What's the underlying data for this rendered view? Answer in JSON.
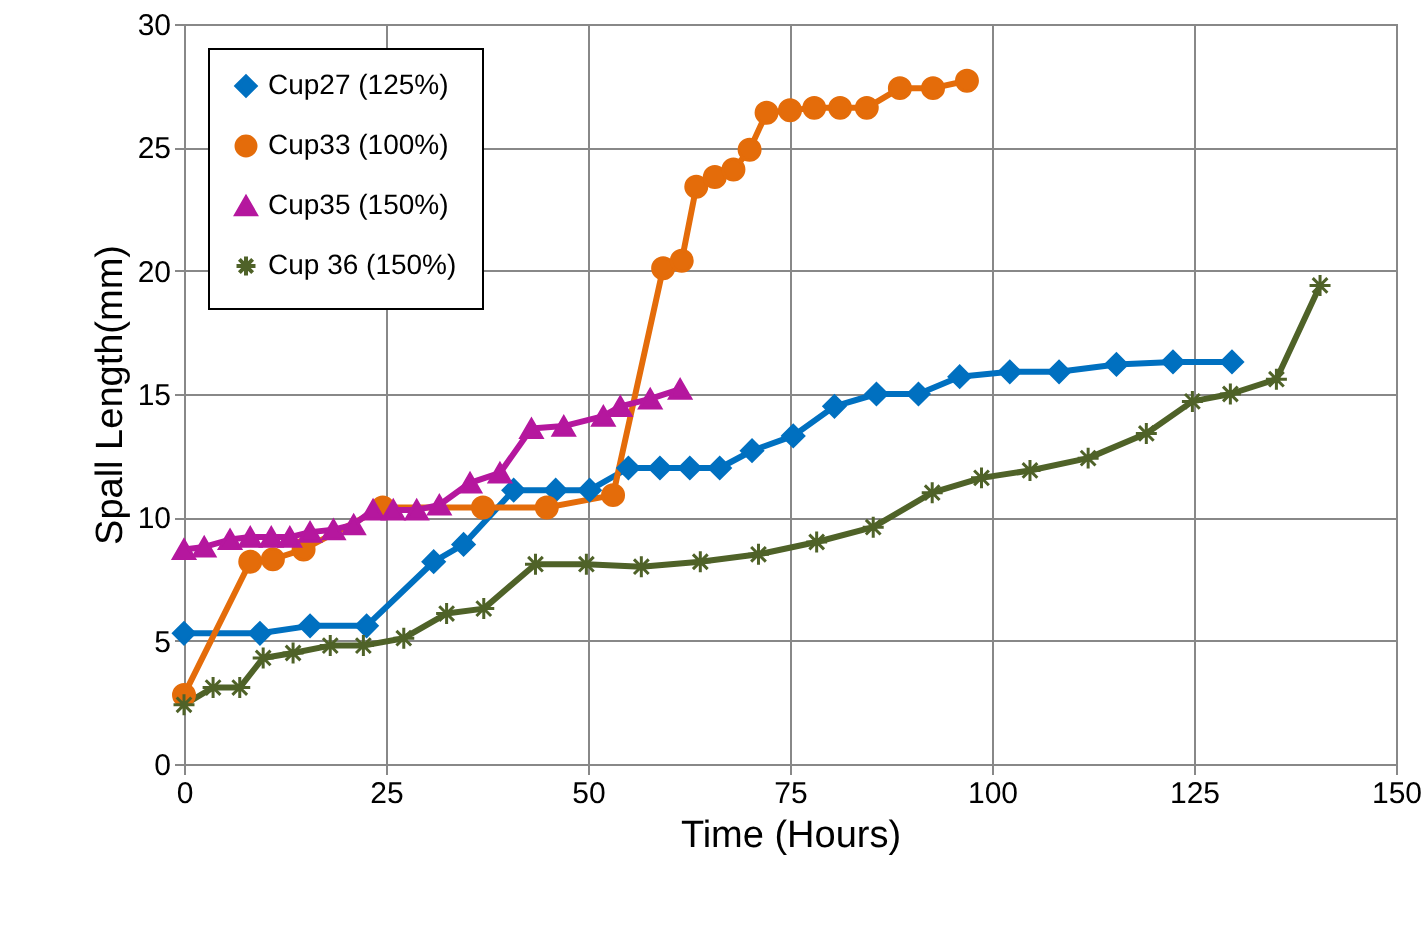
{
  "chart_data": {
    "type": "line",
    "xlabel": "Time (Hours)",
    "ylabel": "Spall Length(mm)",
    "xlim": [
      0,
      150
    ],
    "xticks": [
      0,
      25,
      50,
      75,
      100,
      125,
      150
    ],
    "ylim": [
      0,
      30
    ],
    "yticks": [
      0,
      5,
      10,
      15,
      20,
      25,
      30
    ],
    "grid": true,
    "legend": "top left",
    "line_style": "solid",
    "series": [
      {
        "name": "Cup27 (125%)",
        "color": "#0070c0",
        "marker": "diamond",
        "x": [
          0,
          9.4,
          15.6,
          22.6,
          30.9,
          34.6,
          40.8,
          46,
          50.2,
          55,
          58.9,
          62.6,
          66.3,
          70.3,
          75.4,
          80.5,
          85.7,
          90.9,
          96,
          102.2,
          108.3,
          115.4,
          122.4,
          129.7
        ],
        "values": [
          5.3,
          5.3,
          5.6,
          5.6,
          8.2,
          8.9,
          11.1,
          11.1,
          11.1,
          12.0,
          12.0,
          12.0,
          12.0,
          12.7,
          13.3,
          14.5,
          15.0,
          15.0,
          15.7,
          15.9,
          15.9,
          16.2,
          16.3,
          16.3
        ]
      },
      {
        "name": "Cup33 (100%)",
        "color": "#e46c0a",
        "marker": "circle",
        "x": [
          0,
          8.2,
          11,
          14.8,
          24.6,
          37,
          44.9,
          53.1,
          59.3,
          61.6,
          63.4,
          65.7,
          68,
          70,
          72.1,
          75,
          78,
          81.2,
          84.5,
          88.6,
          92.7,
          96.9
        ],
        "values": [
          2.8,
          8.2,
          8.3,
          8.7,
          10.4,
          10.4,
          10.4,
          10.9,
          20.1,
          20.4,
          23.4,
          23.8,
          24.1,
          24.9,
          26.4,
          26.5,
          26.6,
          26.6,
          26.6,
          27.4,
          27.4,
          27.7
        ]
      },
      {
        "name": "Cup35 (150%)",
        "color": "#b5179e",
        "marker": "triangle",
        "x": [
          0,
          2.5,
          5.7,
          8.2,
          10.8,
          13.1,
          15.6,
          18.5,
          21,
          23.4,
          25.9,
          28.8,
          31.6,
          35.4,
          39.1,
          43,
          47,
          51.9,
          54,
          57.7,
          61.4
        ],
        "values": [
          8.7,
          8.8,
          9.1,
          9.2,
          9.2,
          9.2,
          9.4,
          9.5,
          9.7,
          10.3,
          10.3,
          10.3,
          10.5,
          11.4,
          11.8,
          13.6,
          13.7,
          14.1,
          14.5,
          14.8,
          15.2
        ]
      },
      {
        "name": "Cup 36 (150%)",
        "color": "#4f6228",
        "marker": "cross",
        "x": [
          0,
          3.6,
          6.9,
          9.8,
          13.5,
          18.1,
          22.2,
          27.2,
          32.5,
          37.1,
          43.5,
          49.8,
          56.6,
          63.9,
          71.1,
          78.3,
          85.3,
          92.6,
          98.7,
          104.7,
          111.9,
          119.1,
          124.8,
          129.5,
          135.2,
          140.6
        ],
        "values": [
          2.4,
          3.1,
          3.1,
          4.3,
          4.5,
          4.8,
          4.8,
          5.1,
          6.1,
          6.3,
          8.1,
          8.1,
          8.0,
          8.2,
          8.5,
          9.0,
          9.6,
          11.0,
          11.6,
          11.9,
          12.4,
          13.4,
          14.7,
          15.0,
          15.6,
          19.4
        ]
      }
    ]
  }
}
